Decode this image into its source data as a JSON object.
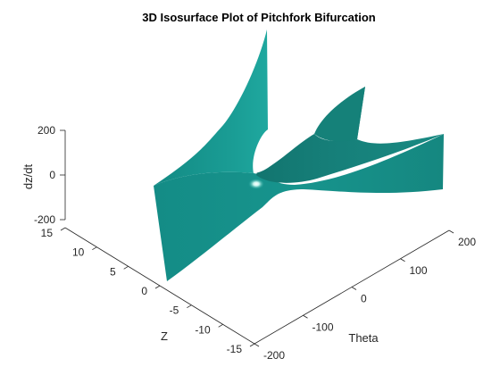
{
  "chart_data": {
    "type": "isosurface",
    "title": "3D Isosurface Plot of Pitchfork Bifurcation",
    "xlabel": "Theta",
    "ylabel": "Z",
    "zlabel": "dz/dt",
    "xlim": [
      -200,
      200
    ],
    "ylim": [
      -15,
      15
    ],
    "zlim": [
      -200,
      200
    ],
    "xticks": [
      "-200",
      "-100",
      "0",
      "100",
      "200"
    ],
    "yticks": [
      "-15",
      "-10",
      "-5",
      "0",
      "5",
      "10",
      "15"
    ],
    "zticks": [
      "-200",
      "0",
      "200"
    ],
    "surface_color": "#1a9a92",
    "grid": false
  }
}
